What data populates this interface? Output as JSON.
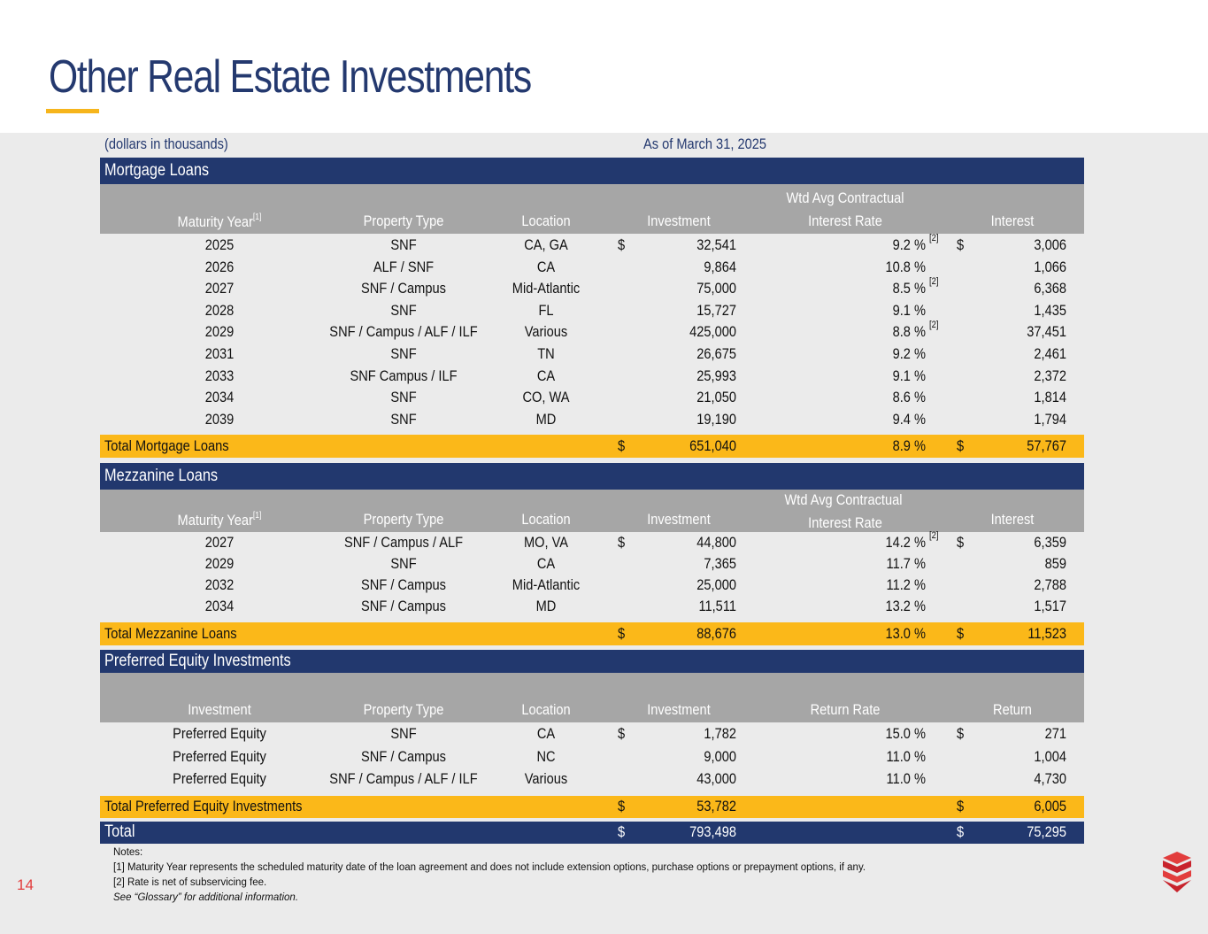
{
  "title": "Other Real Estate Investments",
  "units_note": "(dollars in thousands)",
  "as_of": "As of March 31, 2025",
  "mortgage": {
    "section_label": "Mortgage Loans",
    "headers": {
      "maturity": "Maturity Year",
      "maturity_note": "[1]",
      "property": "Property Type",
      "location": "Location",
      "investment": "Investment",
      "rate_top": "Wtd Avg Contractual",
      "rate_bottom": "Interest Rate",
      "interest": "Interest"
    },
    "rows": [
      {
        "year": "2025",
        "type": "SNF",
        "loc": "CA, GA",
        "inv_dollar": "$",
        "inv": "32,541",
        "rate": "9.2 %",
        "note": "[2]",
        "int_dollar": "$",
        "int": "3,006"
      },
      {
        "year": "2026",
        "type": "ALF / SNF",
        "loc": "CA",
        "inv_dollar": "",
        "inv": "9,864",
        "rate": "10.8 %",
        "note": "",
        "int_dollar": "",
        "int": "1,066"
      },
      {
        "year": "2027",
        "type": "SNF / Campus",
        "loc": "Mid-Atlantic",
        "inv_dollar": "",
        "inv": "75,000",
        "rate": "8.5 %",
        "note": "[2]",
        "int_dollar": "",
        "int": "6,368"
      },
      {
        "year": "2028",
        "type": "SNF",
        "loc": "FL",
        "inv_dollar": "",
        "inv": "15,727",
        "rate": "9.1 %",
        "note": "",
        "int_dollar": "",
        "int": "1,435"
      },
      {
        "year": "2029",
        "type": "SNF / Campus / ALF / ILF",
        "loc": "Various",
        "inv_dollar": "",
        "inv": "425,000",
        "rate": "8.8 %",
        "note": "[2]",
        "int_dollar": "",
        "int": "37,451"
      },
      {
        "year": "2031",
        "type": "SNF",
        "loc": "TN",
        "inv_dollar": "",
        "inv": "26,675",
        "rate": "9.2 %",
        "note": "",
        "int_dollar": "",
        "int": "2,461"
      },
      {
        "year": "2033",
        "type": "SNF Campus / ILF",
        "loc": "CA",
        "inv_dollar": "",
        "inv": "25,993",
        "rate": "9.1 %",
        "note": "",
        "int_dollar": "",
        "int": "2,372"
      },
      {
        "year": "2034",
        "type": "SNF",
        "loc": "CO, WA",
        "inv_dollar": "",
        "inv": "21,050",
        "rate": "8.6 %",
        "note": "",
        "int_dollar": "",
        "int": "1,814"
      },
      {
        "year": "2039",
        "type": "SNF",
        "loc": "MD",
        "inv_dollar": "",
        "inv": "19,190",
        "rate": "9.4 %",
        "note": "",
        "int_dollar": "",
        "int": "1,794"
      }
    ],
    "total": {
      "label": "Total Mortgage Loans",
      "inv_dollar": "$",
      "inv": "651,040",
      "rate": "8.9 %",
      "int_dollar": "$",
      "int": "57,767"
    }
  },
  "mezz": {
    "section_label": "Mezzanine Loans",
    "headers": {
      "maturity": "Maturity Year",
      "maturity_note": "[1]",
      "property": "Property Type",
      "location": "Location",
      "investment": "Investment",
      "rate_top": "Wtd Avg Contractual",
      "rate_bottom": "Interest Rate",
      "interest": "Interest"
    },
    "rows": [
      {
        "year": "2027",
        "type": "SNF / Campus / ALF",
        "loc": "MO, VA",
        "inv_dollar": "$",
        "inv": "44,800",
        "rate": "14.2 %",
        "note": "[2]",
        "int_dollar": "$",
        "int": "6,359"
      },
      {
        "year": "2029",
        "type": "SNF",
        "loc": "CA",
        "inv_dollar": "",
        "inv": "7,365",
        "rate": "11.7 %",
        "note": "",
        "int_dollar": "",
        "int": "859"
      },
      {
        "year": "2032",
        "type": "SNF / Campus",
        "loc": "Mid-Atlantic",
        "inv_dollar": "",
        "inv": "25,000",
        "rate": "11.2 %",
        "note": "",
        "int_dollar": "",
        "int": "2,788"
      },
      {
        "year": "2034",
        "type": "SNF / Campus",
        "loc": "MD",
        "inv_dollar": "",
        "inv": "11,511",
        "rate": "13.2 %",
        "note": "",
        "int_dollar": "",
        "int": "1,517"
      }
    ],
    "total": {
      "label": "Total Mezzanine Loans",
      "inv_dollar": "$",
      "inv": "88,676",
      "rate": "13.0 %",
      "int_dollar": "$",
      "int": "11,523"
    }
  },
  "pref": {
    "section_label": "Preferred Equity Investments",
    "headers": {
      "investment_col": "Investment",
      "property": "Property Type",
      "location": "Location",
      "investment": "Investment",
      "rate": "Return Rate",
      "ret": "Return"
    },
    "rows": [
      {
        "name": "Preferred Equity",
        "type": "SNF",
        "loc": "CA",
        "inv_dollar": "$",
        "inv": "1,782",
        "rate": "15.0 %",
        "int_dollar": "$",
        "int": "271"
      },
      {
        "name": "Preferred Equity",
        "type": "SNF / Campus",
        "loc": "NC",
        "inv_dollar": "",
        "inv": "9,000",
        "rate": "11.0 %",
        "int_dollar": "",
        "int": "1,004"
      },
      {
        "name": "Preferred Equity",
        "type": "SNF / Campus / ALF / ILF",
        "loc": "Various",
        "inv_dollar": "",
        "inv": "43,000",
        "rate": "11.0 %",
        "int_dollar": "",
        "int": "4,730"
      }
    ],
    "total": {
      "label": "Total Preferred Equity Investments",
      "inv_dollar": "$",
      "inv": "53,782",
      "int_dollar": "$",
      "int": "6,005"
    }
  },
  "grand_total": {
    "label": "Total",
    "inv_dollar": "$",
    "inv": "793,498",
    "int_dollar": "$",
    "int": "75,295"
  },
  "notes": {
    "heading": "Notes:",
    "n1": "[1] Maturity Year represents the scheduled maturity date of the loan agreement and does not include extension options, purchase options or prepayment options, if any.",
    "n2": "[2] Rate is net of subservicing fee.",
    "n3": "See “Glossary” for additional information."
  },
  "page_number": "14",
  "colors": {
    "navy": "#22386e",
    "gold": "#fbb819",
    "gray": "#a6a6a6",
    "red": "#e23d3d"
  }
}
